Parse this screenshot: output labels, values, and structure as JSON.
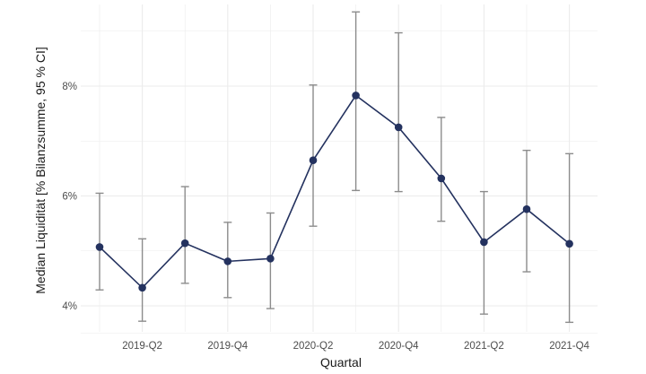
{
  "chart_data": {
    "type": "line",
    "xlabel": "Quartal",
    "ylabel": "Median Liquidität [% Bilanzsumme, 95 % CI]",
    "x": [
      "2019-Q1",
      "2019-Q2",
      "2019-Q3",
      "2019-Q4",
      "2020-Q1",
      "2020-Q2",
      "2020-Q3",
      "2020-Q4",
      "2021-Q1",
      "2021-Q2",
      "2021-Q3",
      "2021-Q4"
    ],
    "x_tick_labels": [
      "2019-Q2",
      "2019-Q4",
      "2020-Q2",
      "2020-Q4",
      "2021-Q2",
      "2021-Q4"
    ],
    "y_tick_values": [
      4,
      6,
      8
    ],
    "y_tick_labels": [
      "4%",
      "6%",
      "8%"
    ],
    "ylim": [
      3.5,
      9.5
    ],
    "grid": true,
    "series": [
      {
        "values": [
          5.07,
          4.33,
          5.14,
          4.81,
          4.86,
          6.65,
          7.83,
          7.25,
          6.32,
          5.16,
          5.76,
          5.13
        ],
        "ci_low": [
          4.29,
          3.72,
          4.41,
          4.15,
          3.95,
          5.45,
          6.1,
          6.08,
          5.54,
          3.85,
          4.62,
          3.7
        ],
        "ci_high": [
          6.05,
          5.22,
          6.17,
          5.52,
          5.69,
          8.02,
          9.35,
          8.97,
          7.43,
          6.08,
          6.83,
          6.77
        ],
        "color": "#24325f"
      }
    ],
    "errorbar_color": "#8c8c8c",
    "gridline_color": "#ebebeb"
  }
}
